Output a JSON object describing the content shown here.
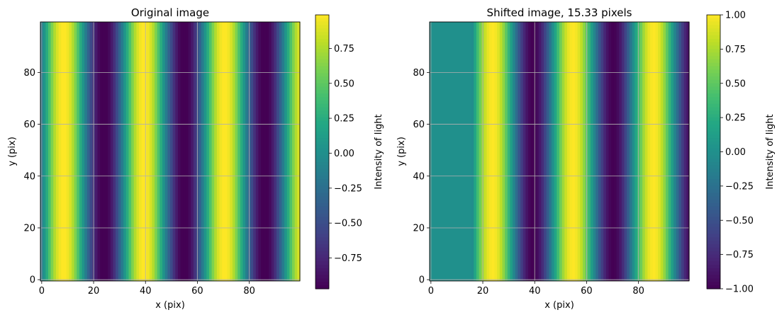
{
  "chart_data": [
    {
      "type": "heatmap",
      "title": "Original image",
      "xlabel": "x (pix)",
      "ylabel": "y (pix)",
      "xlim": [
        -0.5,
        99.5
      ],
      "ylim": [
        -0.5,
        99.5
      ],
      "xticks": [
        0,
        20,
        40,
        60,
        80
      ],
      "yticks": [
        0,
        20,
        40,
        60,
        80
      ],
      "grid": true,
      "colormap": "viridis",
      "pattern": "vertical sinusoidal stripes: value = cos(2*pi*(x - 8.5)/31)",
      "period": 31,
      "phase": 8.5,
      "shift": 0,
      "colorbar": {
        "label": "Intensity of light",
        "vmin": -0.97,
        "vmax": 0.99,
        "ticks": [
          0.75,
          0.5,
          0.25,
          0.0,
          -0.25,
          -0.5,
          -0.75
        ],
        "tick_labels": [
          "0.75",
          "0.50",
          "0.25",
          "0.00",
          "−0.25",
          "−0.50",
          "−0.75"
        ]
      }
    },
    {
      "type": "heatmap",
      "title": "Shifted image, 15.33 pixels",
      "xlabel": "x (pix)",
      "ylabel": "y (pix)",
      "xlim": [
        -0.5,
        99.5
      ],
      "ylim": [
        -0.5,
        99.5
      ],
      "xticks": [
        0,
        20,
        40,
        60,
        80
      ],
      "yticks": [
        0,
        20,
        40,
        60,
        80
      ],
      "grid": true,
      "colormap": "viridis",
      "pattern": "original pattern shifted right by 15.33 pixels; columns x < 15.33 filled with 0",
      "period": 31,
      "phase": 8.5,
      "shift": 15.33,
      "fill_value": 0,
      "colorbar": {
        "label": "Intensity of light",
        "vmin": -1.0,
        "vmax": 1.0,
        "ticks": [
          1.0,
          0.75,
          0.5,
          0.25,
          0.0,
          -0.25,
          -0.5,
          -0.75,
          -1.0
        ],
        "tick_labels": [
          "1.00",
          "0.75",
          "0.50",
          "0.25",
          "0.00",
          "−0.25",
          "−0.50",
          "−0.75",
          "−1.00"
        ]
      }
    }
  ]
}
